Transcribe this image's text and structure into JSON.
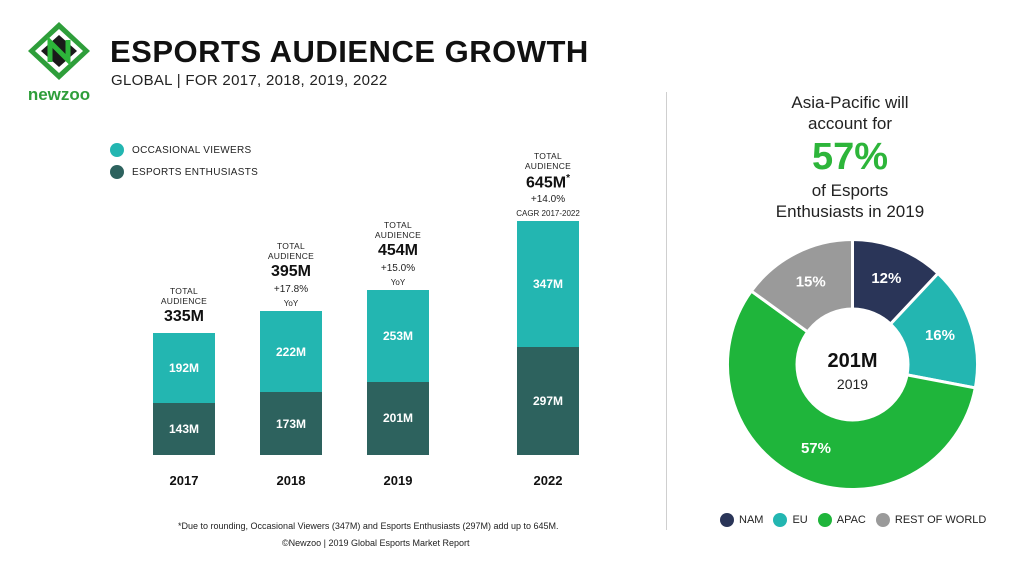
{
  "logo": {
    "text": "newzoo",
    "icon": "newzoo-logo-icon"
  },
  "title": "ESPORTS AUDIENCE GROWTH",
  "subtitle": "GLOBAL | FOR 2017, 2018, 2019, 2022",
  "colors": {
    "occasional": "#23b6b1",
    "enthusiasts": "#2d625e",
    "nam": "#2a3558",
    "eu": "#23b6b1",
    "apac": "#1fb53b",
    "row": "#9a9a9a",
    "accent_green": "#2db53a"
  },
  "chart_data": [
    {
      "type": "bar",
      "stacked": true,
      "categories": [
        "2017",
        "2018",
        "2019",
        "2022"
      ],
      "series": [
        {
          "name": "ESPORTS ENTHUSIASTS",
          "values": [
            143,
            173,
            201,
            297
          ],
          "labels": [
            "143M",
            "173M",
            "201M",
            "297M"
          ]
        },
        {
          "name": "OCCASIONAL VIEWERS",
          "values": [
            192,
            222,
            253,
            347
          ],
          "labels": [
            "192M",
            "222M",
            "253M",
            "347M"
          ]
        }
      ],
      "totals": [
        {
          "heading": [
            "TOTAL",
            "AUDIENCE"
          ],
          "value": "335M",
          "growth": "",
          "growth_note": ""
        },
        {
          "heading": [
            "TOTAL",
            "AUDIENCE"
          ],
          "value": "395M",
          "growth": "+17.8%",
          "growth_note": "YoY"
        },
        {
          "heading": [
            "TOTAL",
            "AUDIENCE"
          ],
          "value": "454M",
          "growth": "+15.0%",
          "growth_note": "YoY"
        },
        {
          "heading": [
            "TOTAL",
            "AUDIENCE"
          ],
          "value": "645M",
          "value_mark": "*",
          "growth": "+14.0%",
          "growth_note": "CAGR 2017-2022"
        }
      ],
      "legend": [
        "OCCASIONAL VIEWERS",
        "ESPORTS ENTHUSIASTS"
      ],
      "legend_position": "top-left",
      "grid": false
    },
    {
      "type": "pie",
      "donut": true,
      "labels": [
        "NAM",
        "EU",
        "APAC",
        "REST OF WORLD"
      ],
      "values": [
        12,
        16,
        57,
        15
      ],
      "value_labels": [
        "12%",
        "16%",
        "57%",
        "15%"
      ],
      "center_value": "201M",
      "center_label": "2019",
      "legend_position": "bottom"
    }
  ],
  "right_panel": {
    "line1": "Asia-Pacific will",
    "line2": "account for",
    "highlight": "57%",
    "line3": "of Esports",
    "line4": "Enthusiasts in 2019"
  },
  "footnote": "*Due to rounding, Occasional Viewers (347M) and Esports Enthusiasts (297M) add up to 645M.",
  "copyright": "©Newzoo | 2019 Global Esports Market Report"
}
